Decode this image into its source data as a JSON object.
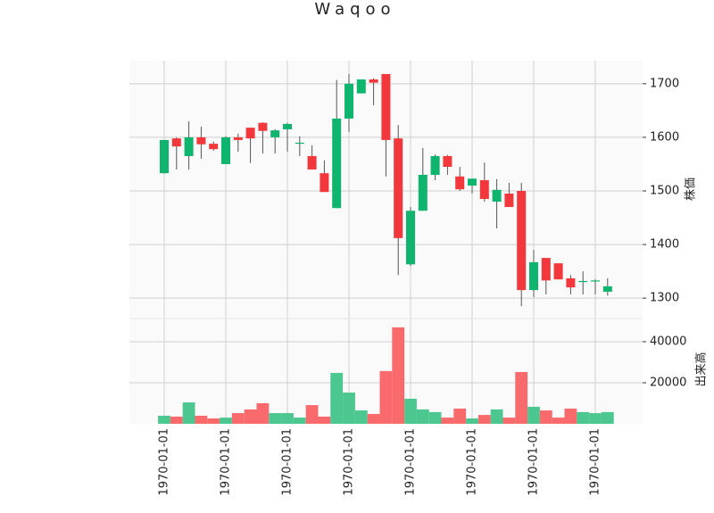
{
  "chart_data": {
    "type": "candlestick",
    "title": "Waqoo",
    "categories": [
      "1970-01-01",
      null,
      null,
      null,
      null,
      "1970-01-01",
      null,
      null,
      null,
      null,
      "1970-01-01",
      null,
      null,
      null,
      null,
      "1970-01-01",
      null,
      null,
      null,
      null,
      "1970-01-01",
      null,
      null,
      null,
      null,
      "1970-01-01",
      null,
      null,
      null,
      null,
      "1970-01-01",
      null,
      null,
      null,
      null,
      "1970-01-01",
      null
    ],
    "open": [
      1533,
      1598,
      1565,
      1600,
      1588,
      1550,
      1600,
      1618,
      1627,
      1600,
      1615,
      1588,
      1565,
      1533,
      1468,
      1635,
      1682,
      1708,
      1718,
      1598,
      1363,
      1463,
      1530,
      1565,
      1527,
      1510,
      1520,
      1480,
      1495,
      1500,
      1315,
      1375,
      1365,
      1337,
      1330,
      1331,
      1312
    ],
    "high": [
      1595,
      1600,
      1630,
      1620,
      1592,
      1602,
      1607,
      1618,
      1628,
      1615,
      1627,
      1602,
      1585,
      1557,
      1707,
      1718,
      1708,
      1710,
      1718,
      1623,
      1470,
      1580,
      1568,
      1567,
      1545,
      1523,
      1553,
      1522,
      1515,
      1515,
      1390,
      1375,
      1365,
      1343,
      1350,
      1335,
      1337
    ],
    "low": [
      1533,
      1540,
      1540,
      1560,
      1575,
      1550,
      1573,
      1552,
      1570,
      1570,
      1573,
      1565,
      1540,
      1498,
      1468,
      1610,
      1682,
      1660,
      1527,
      1343,
      1360,
      1463,
      1520,
      1530,
      1500,
      1495,
      1480,
      1430,
      1470,
      1285,
      1302,
      1307,
      1335,
      1307,
      1307,
      1307,
      1305
    ],
    "close": [
      1595,
      1583,
      1600,
      1587,
      1578,
      1600,
      1595,
      1598,
      1612,
      1613,
      1625,
      1590,
      1540,
      1498,
      1635,
      1700,
      1708,
      1702,
      1595,
      1412,
      1463,
      1530,
      1565,
      1545,
      1503,
      1523,
      1485,
      1502,
      1470,
      1315,
      1367,
      1333,
      1335,
      1320,
      1332,
      1333,
      1322
    ],
    "up_color": "#0fb56f",
    "down_color": "#f2383c",
    "ylim": [
      1262,
      1743
    ],
    "yticks": [
      1300,
      1400,
      1500,
      1600,
      1700
    ],
    "ylabel": "株価",
    "grid": true,
    "volume": {
      "values": [
        3900,
        3500,
        10400,
        3900,
        2600,
        3000,
        5200,
        7000,
        10000,
        5200,
        5200,
        3000,
        9100,
        3500,
        24800,
        15200,
        6500,
        4800,
        25700,
        47000,
        12200,
        7000,
        5700,
        3000,
        7400,
        2600,
        4300,
        7000,
        3000,
        25200,
        8300,
        6500,
        3000,
        7400,
        5700,
        5200,
        5700
      ],
      "ylim": [
        0,
        51300
      ],
      "yticks": [
        20000,
        40000
      ],
      "ylabel": "出来高",
      "up_color": "#4cc78f",
      "down_color": "#f86a6c"
    }
  }
}
